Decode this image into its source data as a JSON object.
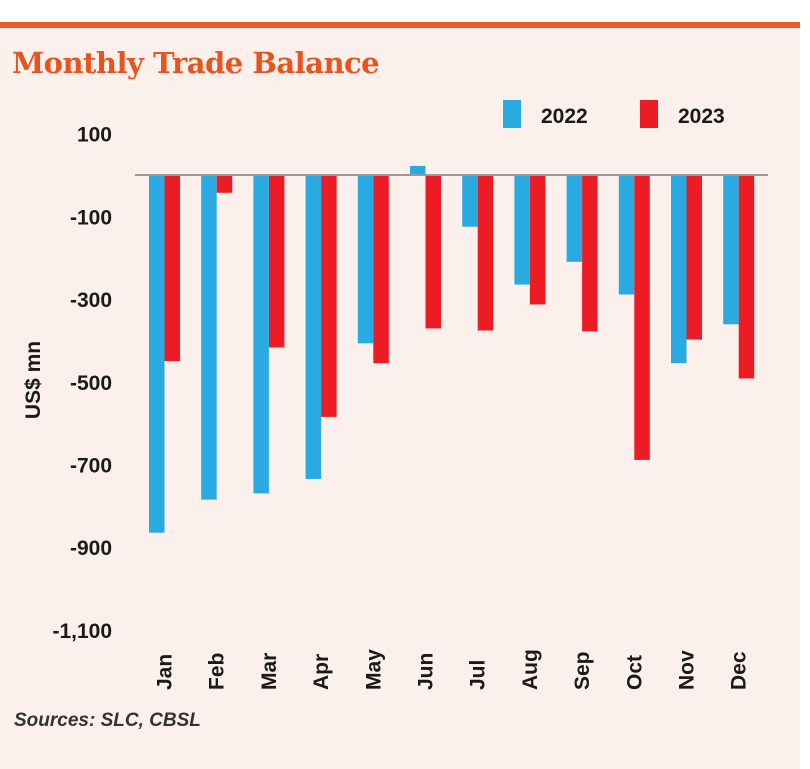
{
  "chart_data": {
    "type": "bar",
    "title": "Monthly Trade Balance",
    "ylabel": "US$ mn",
    "xlabel": "",
    "categories": [
      "Jan",
      "Feb",
      "Mar",
      "Apr",
      "May",
      "Jun",
      "Jul",
      "Aug",
      "Sep",
      "Oct",
      "Nov",
      "Dec"
    ],
    "series": [
      {
        "name": "2022",
        "color": "#29abe2",
        "values": [
          -865,
          -785,
          -770,
          -735,
          -407,
          22,
          -125,
          -265,
          -210,
          -289,
          -455,
          -361
        ]
      },
      {
        "name": "2023",
        "color": "#ed1c24",
        "values": [
          -450,
          -43,
          -417,
          -585,
          -455,
          -371,
          -376,
          -313,
          -378,
          -689,
          -398,
          -492
        ]
      }
    ],
    "yticks": [
      100,
      -100,
      -300,
      -500,
      -700,
      -900,
      -1100
    ],
    "ytick_labels": [
      "100",
      "-100",
      "-300",
      "-500",
      "-700",
      "-900",
      "-1,100"
    ],
    "ylim": [
      -1100,
      100
    ],
    "legend": "top-right",
    "grid": false,
    "source": "Sources: SLC, CBSL",
    "accent_color": "#ec5b24",
    "background": "#fbf0ec"
  }
}
